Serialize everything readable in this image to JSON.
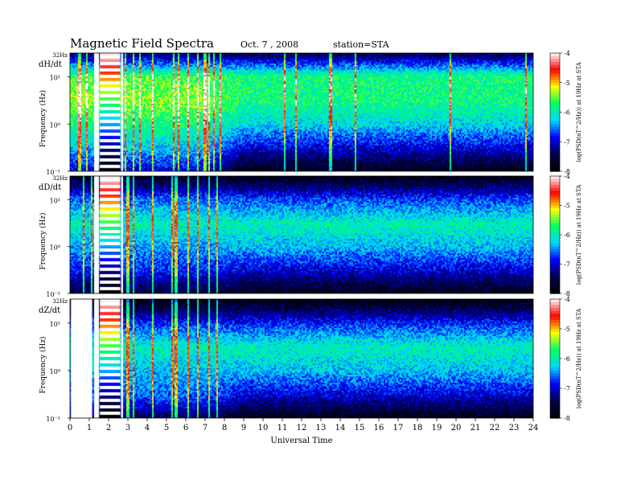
{
  "header": {
    "title": "Magnetic  Field  Spectra",
    "date": "Oct. 7  , 2008",
    "station": "station=STA"
  },
  "colors": {
    "scale": [
      "#000000",
      "#00004a",
      "#0000ff",
      "#00d8ff",
      "#00ff60",
      "#ffff00",
      "#ff0000",
      "#ffffff"
    ]
  },
  "chart_data": [
    {
      "type": "heatmap",
      "component": "dH/dt",
      "ylabel": "Frequency  (Hz)",
      "ytop_label": "32Hz",
      "ytick_labels": [
        "10¹",
        "10⁰",
        "10⁻¹"
      ],
      "y_ticks": [
        10,
        1,
        0.1
      ],
      "ylim": [
        0.1,
        32
      ],
      "yscale": "log",
      "xlim": [
        0,
        24
      ],
      "colorbar": {
        "label": "log(PSD(nT^2/Hz)) at 19Hz at STA",
        "ticks": [
          -4,
          -5,
          -6,
          -7,
          -8
        ],
        "range": [
          -8,
          -4
        ]
      },
      "gaps_hours": [
        [
          1.25,
          1.5
        ],
        [
          2.65,
          2.75
        ]
      ],
      "calibration_hours": [
        1.55,
        2.6
      ],
      "bursts_hours": [
        0.5,
        0.9,
        2.9,
        3.3,
        3.6,
        4.3,
        5.4,
        5.6,
        6.1,
        6.6,
        7.0,
        7.2,
        7.45,
        7.8,
        11.1,
        11.7,
        13.5,
        14.8,
        19.7,
        23.6
      ],
      "approx_log_psd": {
        "freq_hz": [
          0.1,
          0.3,
          1,
          3,
          10,
          32
        ],
        "hours_0_8": [
          -7.0,
          -6.3,
          -5.8,
          -5.4,
          -5.6,
          -7.5
        ],
        "hours_8_24": [
          -7.8,
          -7.0,
          -6.2,
          -5.8,
          -5.8,
          -7.6
        ]
      }
    },
    {
      "type": "heatmap",
      "component": "dD/dt",
      "ylabel": "Frequency  (Hz)",
      "ytop_label": "32Hz",
      "ytick_labels": [
        "10¹",
        "10⁰",
        "10⁻¹"
      ],
      "y_ticks": [
        10,
        1,
        0.1
      ],
      "ylim": [
        0.1,
        32
      ],
      "yscale": "log",
      "xlim": [
        0,
        24
      ],
      "colorbar": {
        "label": "log(PSD(nT^2/Hz)) at 19Hz at STA",
        "ticks": [
          -4,
          -5,
          -6,
          -7,
          -8
        ],
        "range": [
          -8,
          -4
        ]
      },
      "gaps_hours": [
        [
          1.25,
          1.5
        ],
        [
          2.65,
          2.75
        ]
      ],
      "calibration_hours": [
        1.55,
        2.6
      ],
      "bursts_hours": [
        0.7,
        1.1,
        3.0,
        3.3,
        4.3,
        5.3,
        5.5,
        6.1,
        6.6,
        7.2,
        7.6
      ],
      "approx_log_psd": {
        "freq_hz": [
          0.1,
          0.3,
          1,
          3,
          10,
          32
        ],
        "hours_0_8": [
          -7.6,
          -6.8,
          -6.4,
          -6.0,
          -6.6,
          -7.8
        ],
        "hours_8_24": [
          -7.8,
          -7.0,
          -6.3,
          -6.0,
          -6.7,
          -7.9
        ]
      }
    },
    {
      "type": "heatmap",
      "component": "dZ/dt",
      "ylabel": "Frequency  (Hz)",
      "ytop_label": "32Hz",
      "ytick_labels": [
        "10¹",
        "10⁰",
        "10⁻¹"
      ],
      "y_ticks": [
        10,
        1,
        0.1
      ],
      "ylim": [
        0.1,
        32
      ],
      "yscale": "log",
      "xlim": [
        0,
        24
      ],
      "colorbar": {
        "label": "log(PSD(nT^2/Hz)) at 19Hz at STA",
        "ticks": [
          -4,
          -5,
          -6,
          -7,
          -8
        ],
        "range": [
          -8,
          -4
        ]
      },
      "gaps_hours": [
        [
          0.05,
          1.15
        ],
        [
          1.25,
          1.5
        ],
        [
          2.65,
          2.75
        ]
      ],
      "calibration_hours": [
        1.55,
        2.6
      ],
      "bursts_hours": [
        3.0,
        3.3,
        4.3,
        5.3,
        5.5,
        6.1,
        6.6,
        7.2,
        7.6
      ],
      "approx_log_psd": {
        "freq_hz": [
          0.1,
          0.3,
          1,
          3,
          10,
          32
        ],
        "hours_0_8": [
          -7.4,
          -6.6,
          -6.3,
          -6.0,
          -6.8,
          -7.9
        ],
        "hours_8_24": [
          -7.8,
          -7.0,
          -6.3,
          -6.0,
          -6.8,
          -7.9
        ]
      }
    }
  ],
  "xaxis": {
    "label": "Universal Time",
    "ticks": [
      "0",
      "1",
      "2",
      "3",
      "4",
      "5",
      "6",
      "7",
      "8",
      "9",
      "10",
      "11",
      "12",
      "13",
      "14",
      "15",
      "16",
      "17",
      "18",
      "19",
      "20",
      "21",
      "22",
      "23",
      "24"
    ]
  }
}
